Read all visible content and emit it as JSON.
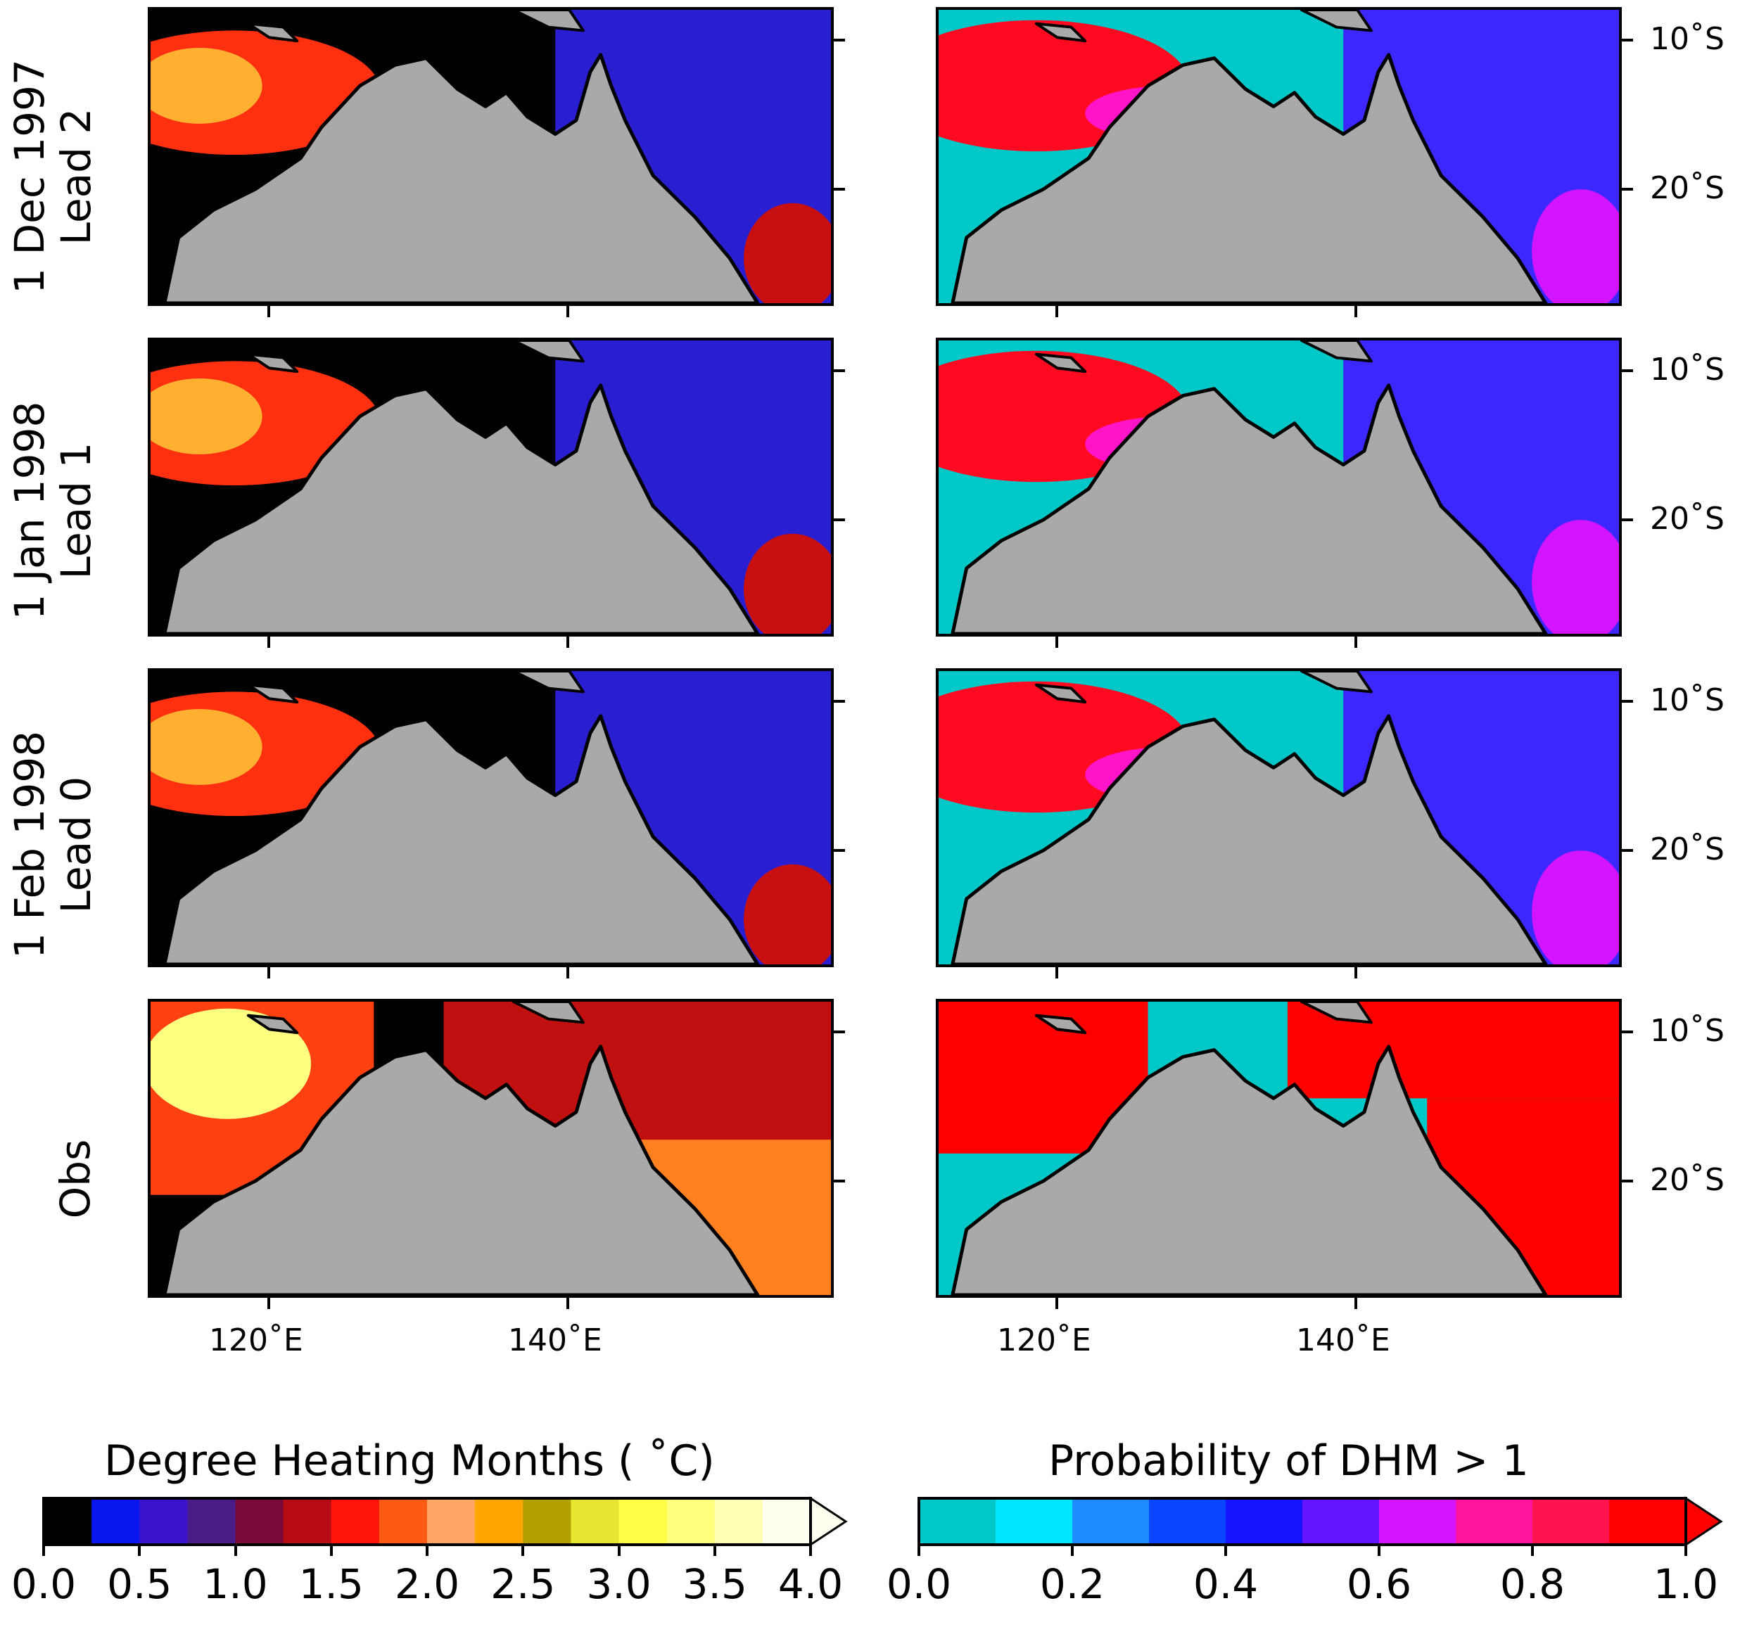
{
  "rows": [
    {
      "line1": "1 Dec 1997",
      "line2": "Lead 2"
    },
    {
      "line1": "1 Jan 1998",
      "line2": "Lead 1"
    },
    {
      "line1": "1 Feb 1998",
      "line2": "Lead 0"
    },
    {
      "line1": "Obs",
      "line2": ""
    }
  ],
  "chart_data": [
    {
      "type": "heatmap",
      "title": "Degree Heating Months (°C)",
      "variable": "degree_heating_months",
      "x_ticks": [
        "120°E",
        "140°E"
      ],
      "y_ticks": [
        "10°S",
        "20°S"
      ],
      "colorbar": {
        "label": "Degree Heating Months ( ˚C)",
        "ticks": [
          "0.0",
          "0.5",
          "1.0",
          "1.5",
          "2.0",
          "2.5",
          "3.0",
          "3.5",
          "4.0"
        ],
        "range": [
          0,
          4
        ],
        "extend": "max",
        "colors": [
          "#000000",
          "#0a16ee",
          "#3a14cc",
          "#4a1c88",
          "#7a0a38",
          "#b80c14",
          "#ff140a",
          "#ff5a14",
          "#ffa866",
          "#ffa500",
          "#b4a000",
          "#e6e632",
          "#ffff46",
          "#ffff7d",
          "#ffffb4",
          "#fffff0"
        ]
      },
      "panels": [
        "1 Dec 1997 Lead 2",
        "1 Jan 1998 Lead 1",
        "1 Feb 1998 Lead 0",
        "Obs"
      ]
    },
    {
      "type": "heatmap",
      "title": "Probability of DHM > 1",
      "variable": "probability_dhm_gt_1",
      "x_ticks": [
        "120°E",
        "140°E"
      ],
      "y_ticks": [
        "10°S",
        "20°S"
      ],
      "colorbar": {
        "label": "Probability of DHM > 1",
        "ticks": [
          "0.0",
          "0.2",
          "0.4",
          "0.6",
          "0.8",
          "1.0"
        ],
        "range": [
          0,
          1
        ],
        "extend": "max",
        "colors": [
          "#00c8c8",
          "#00e6ff",
          "#1e8cff",
          "#0a46ff",
          "#1414ff",
          "#6414ff",
          "#d214ff",
          "#ff14a0",
          "#ff1450",
          "#ff0000"
        ]
      },
      "panels": [
        "1 Dec 1997 Lead 2",
        "1 Jan 1998 Lead 1",
        "1 Feb 1998 Lead 0",
        "Obs"
      ]
    }
  ],
  "axis": {
    "x_tick1": "120˚E",
    "x_tick2": "140˚E",
    "y_tick1": "10˚S",
    "y_tick2": "20˚S"
  },
  "colorbar_left": {
    "title": "Degree Heating Months ( ˚C)",
    "ticks": [
      "0.0",
      "0.5",
      "1.0",
      "1.5",
      "2.0",
      "2.5",
      "3.0",
      "3.5",
      "4.0"
    ]
  },
  "colorbar_right": {
    "title": "Probability of DHM > 1",
    "ticks": [
      "0.0",
      "0.2",
      "0.4",
      "0.6",
      "0.8",
      "1.0"
    ]
  },
  "colors": {
    "land": "#a9a9a9",
    "coast": "#000000"
  }
}
